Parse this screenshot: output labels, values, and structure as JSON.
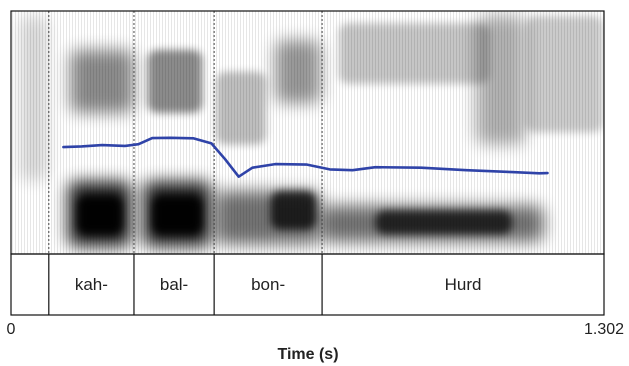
{
  "figure": {
    "x_axis": {
      "min": 0,
      "max": 1.302,
      "min_label": "0",
      "max_label": "1.302",
      "title": "Time (s)"
    },
    "boundaries_s": [
      0.083,
      0.27,
      0.446,
      0.683
    ],
    "intervals": [
      {
        "start": 0,
        "end": 0.083,
        "label": ""
      },
      {
        "start": 0.083,
        "end": 0.27,
        "label": "kah-"
      },
      {
        "start": 0.27,
        "end": 0.446,
        "label": "bal-"
      },
      {
        "start": 0.446,
        "end": 0.683,
        "label": "bon-"
      },
      {
        "start": 0.683,
        "end": 1.302,
        "label": "Hurd"
      }
    ],
    "pitch_track": {
      "color": "#2f43a8",
      "note": "relative pitch height, 0 = spectrogram bottom, 1 = top",
      "points": [
        [
          0.115,
          0.44
        ],
        [
          0.155,
          0.443
        ],
        [
          0.2,
          0.448
        ],
        [
          0.25,
          0.445
        ],
        [
          0.28,
          0.452
        ],
        [
          0.31,
          0.477
        ],
        [
          0.35,
          0.478
        ],
        [
          0.4,
          0.476
        ],
        [
          0.44,
          0.455
        ],
        [
          0.47,
          0.39
        ],
        [
          0.5,
          0.318
        ],
        [
          0.53,
          0.355
        ],
        [
          0.58,
          0.37
        ],
        [
          0.65,
          0.368
        ],
        [
          0.7,
          0.348
        ],
        [
          0.75,
          0.345
        ],
        [
          0.8,
          0.357
        ],
        [
          0.9,
          0.355
        ],
        [
          1.0,
          0.345
        ],
        [
          1.1,
          0.337
        ],
        [
          1.16,
          0.332
        ],
        [
          1.178,
          0.333
        ]
      ]
    },
    "colors": {
      "frame": "#111111",
      "boundary": "#444444",
      "energy": "#000000"
    }
  }
}
